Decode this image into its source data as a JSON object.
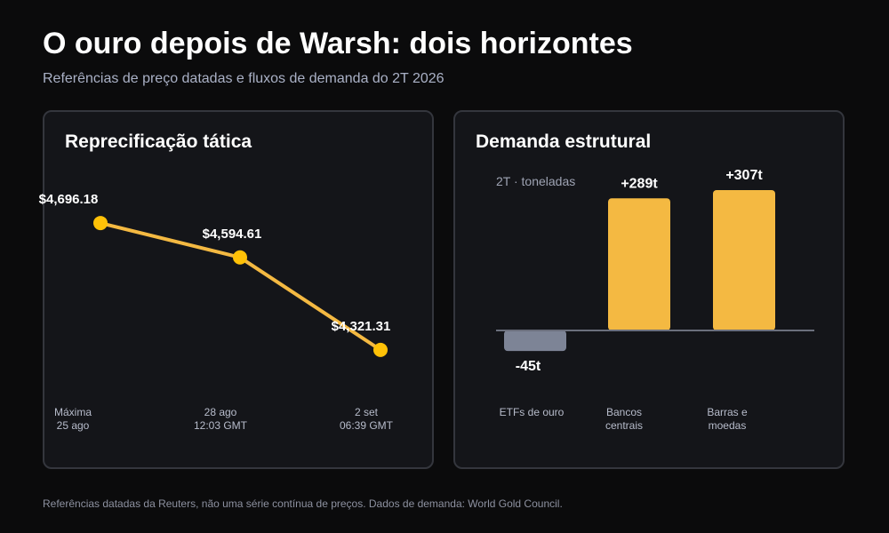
{
  "title": "O ouro depois de Warsh: dois horizontes",
  "subtitle": "Referências de preço datadas e fluxos de demanda do 2T 2026",
  "footnote": "Referências datadas da Reuters, não uma série contínua de preços. Dados de demanda: World Gold Council.",
  "colors": {
    "accent": "#f4b942",
    "negative": "#7d8496",
    "line": "#f4b942",
    "point": "#ffc107",
    "baseline": "#6b6f7c"
  },
  "chart_data": [
    {
      "type": "line",
      "title": "Reprecificação tática",
      "categories": [
        [
          "Máxima",
          "25 ago"
        ],
        [
          "28 ago",
          "12:03 GMT"
        ],
        [
          "2 set",
          "06:39 GMT"
        ]
      ],
      "values": [
        4696.18,
        4594.61,
        4321.31
      ],
      "labels": [
        "$4,696.18",
        "$4,594.61",
        "$4,321.31"
      ],
      "ylim": [
        4300,
        4720
      ],
      "grid": false
    },
    {
      "type": "bar",
      "title": "Demanda estrutural",
      "unit_label": "2T · toneladas",
      "categories": [
        [
          "ETFs de ouro"
        ],
        [
          "Bancos",
          "centrais"
        ],
        [
          "Barras e",
          "moedas"
        ]
      ],
      "values": [
        -45,
        289,
        307
      ],
      "labels": [
        "-45t",
        "+289t",
        "+307t"
      ],
      "ylim": [
        -60,
        320
      ],
      "grid": false
    }
  ]
}
